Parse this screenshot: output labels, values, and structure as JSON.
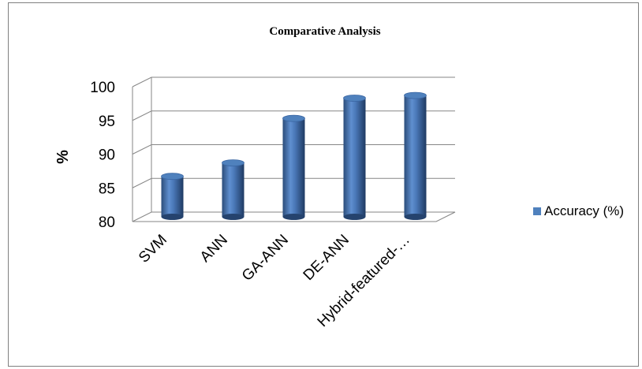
{
  "chart_data": {
    "type": "bar",
    "title": "Comparative Analysis",
    "xlabel": "",
    "ylabel": "%",
    "ylim": [
      80,
      100
    ],
    "yticks": [
      80,
      85,
      90,
      95,
      100
    ],
    "categories": [
      "SVM",
      "ANN",
      "GA-ANN",
      "DE-ANN",
      "Hybrid-featured-…"
    ],
    "series": [
      {
        "name": "Accuracy (%)",
        "values": [
          86,
          88,
          94.6,
          97.6,
          98
        ],
        "color": "#4f81bd"
      }
    ],
    "grid": true,
    "legend": "right",
    "style": "3d-cylinder"
  }
}
